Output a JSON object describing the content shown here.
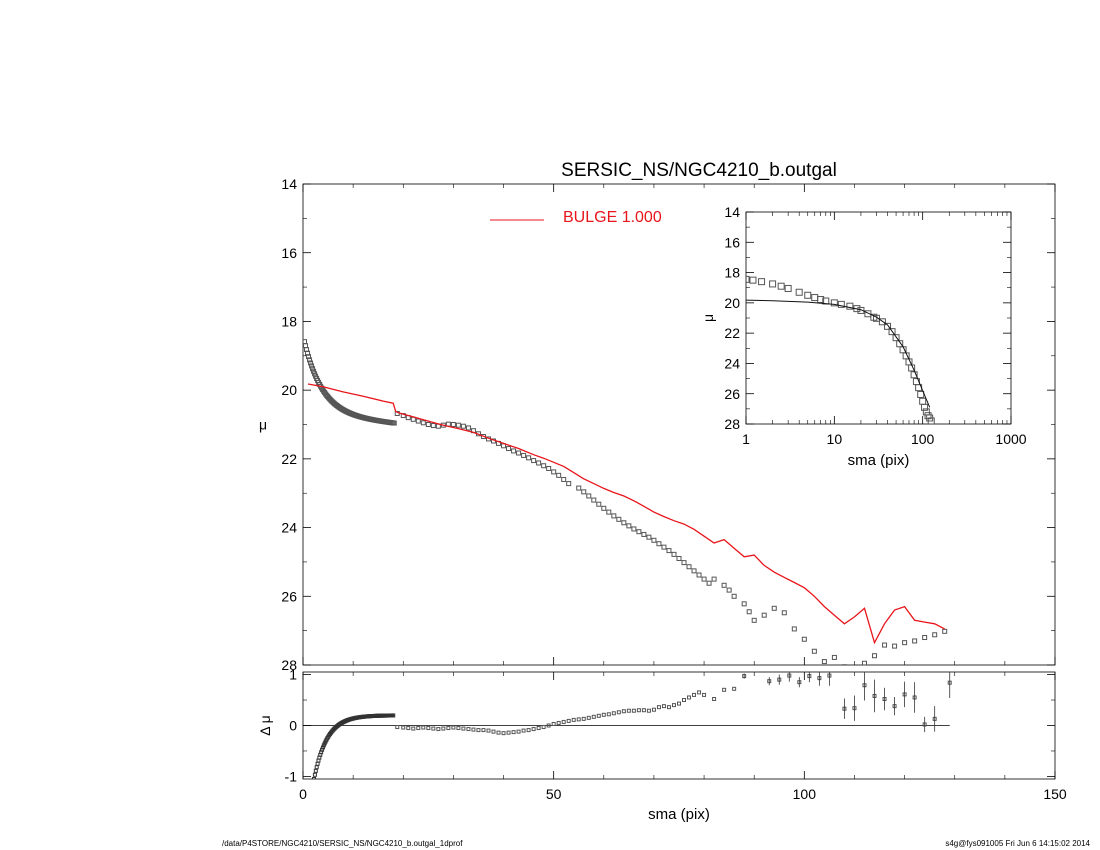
{
  "footer": {
    "path": "/data/P4STORE/NGC4210/SERSIC_NS/NGC4210_b.outgal_1dprof",
    "stamp": "s4g@fys091005  Fri Jun  6 14:15:02 2014"
  },
  "chart_data": [
    {
      "id": "main",
      "type": "scatter",
      "title": "SERSIC_NS/NGC4210_b.outgal",
      "xlabel": "",
      "ylabel": "μ",
      "xlim": [
        0,
        150
      ],
      "ylim": [
        28,
        14
      ],
      "xticks": [
        0,
        50,
        100,
        150
      ],
      "xticklabels": [
        "",
        "",
        "",
        ""
      ],
      "yticks": [
        14,
        16,
        18,
        20,
        22,
        24,
        26,
        28
      ],
      "yticklabels": [
        "14",
        "16",
        "18",
        "20",
        "22",
        "24",
        "26",
        "28"
      ],
      "legend": {
        "position": "top",
        "entries": [
          {
            "label": "BULGE  1.000",
            "color": "#e8151b"
          }
        ]
      },
      "series": [
        {
          "kind": "data-points",
          "color": "#555555",
          "inner_start": 0.3,
          "inner_end": 18.2,
          "inner_count": 90,
          "x": [
            18.8,
            20,
            21,
            22,
            23,
            24,
            25,
            26,
            27,
            28,
            29,
            30,
            31,
            32,
            33,
            34,
            35,
            36,
            37,
            38,
            39,
            40,
            41,
            42,
            43,
            44,
            45,
            46,
            47,
            48,
            49,
            50,
            51,
            52,
            53,
            55,
            56,
            57,
            58,
            59,
            60,
            61,
            62,
            63,
            64,
            65,
            66,
            67,
            68,
            69,
            70,
            71,
            72,
            73,
            74,
            75,
            76,
            77,
            78,
            79,
            80,
            81,
            82,
            84,
            85,
            86,
            88,
            89,
            90,
            92,
            94,
            96,
            98,
            100,
            102,
            104,
            106,
            108,
            110,
            112,
            114,
            116,
            118,
            120,
            122,
            124,
            126,
            128
          ],
          "y": [
            20.68,
            20.74,
            20.8,
            20.85,
            20.9,
            20.95,
            21.0,
            21.03,
            21.05,
            21.02,
            20.99,
            21.0,
            21.02,
            21.05,
            21.1,
            21.18,
            21.27,
            21.35,
            21.42,
            21.48,
            21.55,
            21.62,
            21.7,
            21.77,
            21.83,
            21.9,
            21.97,
            22.05,
            22.12,
            22.2,
            22.28,
            22.38,
            22.48,
            22.6,
            22.72,
            22.85,
            22.96,
            23.08,
            23.2,
            23.32,
            23.44,
            23.55,
            23.66,
            23.76,
            23.86,
            23.95,
            24.04,
            24.12,
            24.2,
            24.28,
            24.37,
            24.47,
            24.57,
            24.67,
            24.78,
            24.9,
            25.02,
            25.14,
            25.26,
            25.38,
            25.5,
            25.62,
            25.5,
            25.68,
            25.82,
            26.0,
            26.22,
            26.45,
            26.7,
            26.55,
            26.35,
            26.48,
            26.95,
            27.25,
            27.6,
            27.9,
            27.78,
            28.05,
            28.25,
            27.95,
            27.73,
            27.42,
            27.45,
            27.35,
            27.3,
            27.2,
            27.12,
            27.02
          ]
        },
        {
          "kind": "model",
          "name": "BULGE  1.000",
          "color": "#e8151b",
          "x": [
            1,
            4,
            8,
            12,
            16,
            18,
            18.5,
            19,
            22,
            25,
            28,
            31,
            34,
            37,
            40,
            43,
            46,
            48,
            50,
            52,
            54,
            56,
            58,
            60,
            62,
            64,
            66,
            68,
            70,
            72,
            74,
            76,
            78,
            80,
            82,
            84,
            86,
            88,
            90,
            92,
            94,
            96,
            98,
            100,
            102,
            104,
            106,
            108,
            110,
            112,
            114,
            116,
            118,
            120,
            122,
            124,
            126,
            128
          ],
          "y": [
            19.82,
            19.9,
            20.05,
            20.18,
            20.32,
            20.38,
            20.62,
            20.66,
            20.78,
            20.9,
            21.02,
            21.12,
            21.23,
            21.4,
            21.55,
            21.7,
            21.88,
            21.98,
            22.1,
            22.22,
            22.4,
            22.58,
            22.72,
            22.86,
            22.98,
            23.08,
            23.22,
            23.38,
            23.55,
            23.68,
            23.8,
            23.9,
            24.05,
            24.25,
            24.45,
            24.35,
            24.6,
            24.85,
            24.8,
            25.1,
            25.3,
            25.45,
            25.6,
            25.75,
            26.0,
            26.3,
            26.55,
            26.8,
            26.6,
            26.35,
            27.35,
            26.8,
            26.4,
            26.3,
            26.7,
            26.75,
            26.8,
            26.95
          ]
        }
      ]
    },
    {
      "id": "inset",
      "type": "scatter",
      "xlabel": "sma (pix)",
      "ylabel": "μ",
      "xscale": "log",
      "xlim": [
        1,
        1000
      ],
      "ylim": [
        28,
        14
      ],
      "xticks": [
        1,
        10,
        100,
        1000
      ],
      "xticklabels": [
        "1",
        "10",
        "100",
        "1000"
      ],
      "yticks": [
        14,
        16,
        18,
        20,
        22,
        24,
        26,
        28
      ],
      "yticklabels": [
        "14",
        "16",
        "18",
        "20",
        "22",
        "24",
        "26",
        "28"
      ],
      "series": [
        {
          "kind": "data-points",
          "color": "#555555",
          "x": [
            1,
            1.2,
            1.5,
            2,
            2.5,
            3,
            4,
            5,
            6,
            7,
            8,
            10,
            12,
            15,
            18,
            20,
            24,
            28,
            30,
            35,
            40,
            45,
            50,
            55,
            60,
            65,
            70,
            75,
            80,
            85,
            90,
            95,
            100,
            105,
            110,
            115,
            120,
            125
          ],
          "y": [
            18.45,
            18.5,
            18.6,
            18.75,
            18.9,
            19.05,
            19.3,
            19.5,
            19.65,
            19.78,
            19.88,
            20.0,
            20.1,
            20.22,
            20.38,
            20.5,
            20.72,
            20.95,
            21.02,
            21.25,
            21.55,
            21.9,
            22.3,
            22.7,
            23.1,
            23.5,
            23.9,
            24.3,
            24.75,
            25.2,
            25.6,
            26.05,
            26.5,
            26.9,
            27.2,
            27.45,
            27.6,
            27.8
          ]
        },
        {
          "kind": "model",
          "color": "#111111",
          "x": [
            1,
            2,
            5,
            10,
            20,
            30,
            40,
            60,
            80,
            100,
            120
          ],
          "y": [
            19.82,
            19.86,
            19.95,
            20.1,
            20.45,
            20.95,
            21.45,
            22.9,
            24.45,
            25.8,
            26.9
          ]
        }
      ]
    },
    {
      "id": "residual",
      "type": "scatter",
      "xlabel": "sma (pix)",
      "ylabel": "Δ μ",
      "xlim": [
        0,
        150
      ],
      "ylim": [
        -1.05,
        1.05
      ],
      "xticks": [
        0,
        50,
        100,
        150
      ],
      "xticklabels": [
        "0",
        "50",
        "100",
        "150"
      ],
      "yticks": [
        -1,
        0,
        1
      ],
      "yticklabels": [
        "-1",
        "0",
        "1"
      ],
      "zero_line": true,
      "series": [
        {
          "kind": "residuals",
          "color": "#555555",
          "curve_x": [
            2.2,
            2.6,
            3,
            3.5,
            4,
            4.5,
            5,
            5.5,
            6,
            7,
            8,
            9,
            10,
            11,
            12,
            13,
            14,
            15,
            16,
            17,
            18
          ],
          "curve_y": [
            -1.05,
            -0.88,
            -0.72,
            -0.58,
            -0.47,
            -0.38,
            -0.3,
            -0.24,
            -0.19,
            -0.12,
            -0.07,
            -0.03,
            0.0,
            0.03,
            0.06,
            0.09,
            0.12,
            0.15,
            0.17,
            0.19,
            0.2
          ],
          "x": [
            18.8,
            20,
            21,
            22,
            23,
            24,
            25,
            26,
            27,
            28,
            29,
            30,
            31,
            32,
            33,
            34,
            35,
            36,
            37,
            38,
            39,
            40,
            41,
            42,
            43,
            44,
            45,
            46,
            47,
            48,
            49,
            50,
            51,
            52,
            53,
            54,
            55,
            56,
            57,
            58,
            59,
            60,
            61,
            62,
            63,
            64,
            65,
            66,
            67,
            68,
            69,
            70,
            71,
            72,
            73,
            74,
            75,
            76,
            77,
            78,
            79,
            80,
            82,
            84,
            86
          ],
          "y": [
            -0.03,
            -0.04,
            -0.05,
            -0.06,
            -0.05,
            -0.04,
            -0.05,
            -0.06,
            -0.07,
            -0.06,
            -0.05,
            -0.04,
            -0.05,
            -0.06,
            -0.07,
            -0.08,
            -0.09,
            -0.09,
            -0.1,
            -0.12,
            -0.14,
            -0.15,
            -0.14,
            -0.13,
            -0.12,
            -0.1,
            -0.09,
            -0.07,
            -0.05,
            -0.03,
            0.0,
            0.03,
            0.05,
            0.07,
            0.09,
            0.11,
            0.12,
            0.13,
            0.15,
            0.17,
            0.19,
            0.21,
            0.22,
            0.24,
            0.26,
            0.28,
            0.29,
            0.29,
            0.3,
            0.3,
            0.29,
            0.31,
            0.36,
            0.38,
            0.36,
            0.4,
            0.43,
            0.5,
            0.55,
            0.6,
            0.65,
            0.6,
            0.52,
            0.7,
            0.72
          ]
        },
        {
          "kind": "residuals-with-errors",
          "color": "#555555",
          "x": [
            88,
            93,
            95,
            97,
            99,
            101,
            103,
            105,
            108,
            110,
            112,
            114,
            116,
            118,
            120,
            122,
            124,
            126,
            129
          ],
          "y": [
            0.97,
            0.87,
            0.9,
            0.98,
            0.85,
            0.97,
            0.93,
            0.98,
            0.33,
            0.34,
            0.79,
            0.58,
            0.52,
            0.38,
            0.61,
            0.55,
            0.02,
            0.13,
            0.84
          ],
          "err": [
            0.05,
            0.08,
            0.1,
            0.12,
            0.1,
            0.12,
            0.15,
            0.2,
            0.2,
            0.25,
            0.3,
            0.32,
            0.22,
            0.18,
            0.25,
            0.3,
            0.15,
            0.25,
            0.3
          ]
        }
      ]
    }
  ]
}
